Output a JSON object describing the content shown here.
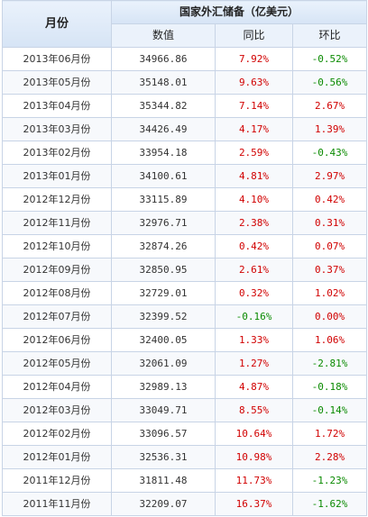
{
  "header": {
    "month_label": "月份",
    "group_label": "国家外汇储备（亿美元）",
    "value_label": "数值",
    "yoy_label": "同比",
    "mom_label": "环比"
  },
  "colors": {
    "positive": "#d10000",
    "negative": "#0a8a00"
  },
  "rows": [
    {
      "month": "2013年06月份",
      "value": "34966.86",
      "yoy": "7.92%",
      "mom": "-0.52%"
    },
    {
      "month": "2013年05月份",
      "value": "35148.01",
      "yoy": "9.63%",
      "mom": "-0.56%"
    },
    {
      "month": "2013年04月份",
      "value": "35344.82",
      "yoy": "7.14%",
      "mom": "2.67%"
    },
    {
      "month": "2013年03月份",
      "value": "34426.49",
      "yoy": "4.17%",
      "mom": "1.39%"
    },
    {
      "month": "2013年02月份",
      "value": "33954.18",
      "yoy": "2.59%",
      "mom": "-0.43%"
    },
    {
      "month": "2013年01月份",
      "value": "34100.61",
      "yoy": "4.81%",
      "mom": "2.97%"
    },
    {
      "month": "2012年12月份",
      "value": "33115.89",
      "yoy": "4.10%",
      "mom": "0.42%"
    },
    {
      "month": "2012年11月份",
      "value": "32976.71",
      "yoy": "2.38%",
      "mom": "0.31%"
    },
    {
      "month": "2012年10月份",
      "value": "32874.26",
      "yoy": "0.42%",
      "mom": "0.07%"
    },
    {
      "month": "2012年09月份",
      "value": "32850.95",
      "yoy": "2.61%",
      "mom": "0.37%"
    },
    {
      "month": "2012年08月份",
      "value": "32729.01",
      "yoy": "0.32%",
      "mom": "1.02%"
    },
    {
      "month": "2012年07月份",
      "value": "32399.52",
      "yoy": "-0.16%",
      "mom": "0.00%"
    },
    {
      "month": "2012年06月份",
      "value": "32400.05",
      "yoy": "1.33%",
      "mom": "1.06%"
    },
    {
      "month": "2012年05月份",
      "value": "32061.09",
      "yoy": "1.27%",
      "mom": "-2.81%"
    },
    {
      "month": "2012年04月份",
      "value": "32989.13",
      "yoy": "4.87%",
      "mom": "-0.18%"
    },
    {
      "month": "2012年03月份",
      "value": "33049.71",
      "yoy": "8.55%",
      "mom": "-0.14%"
    },
    {
      "month": "2012年02月份",
      "value": "33096.57",
      "yoy": "10.64%",
      "mom": "1.72%"
    },
    {
      "month": "2012年01月份",
      "value": "32536.31",
      "yoy": "10.98%",
      "mom": "2.28%"
    },
    {
      "month": "2011年12月份",
      "value": "31811.48",
      "yoy": "11.73%",
      "mom": "-1.23%"
    },
    {
      "month": "2011年11月份",
      "value": "32209.07",
      "yoy": "16.37%",
      "mom": "-1.62%"
    }
  ]
}
